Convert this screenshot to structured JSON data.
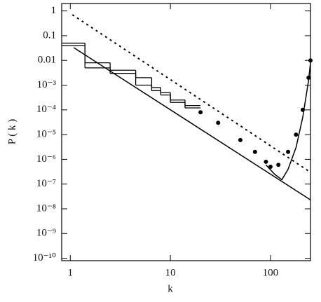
{
  "chart_data": {
    "type": "line",
    "x_label": "k",
    "y_label": "P ( k )",
    "log_x": true,
    "log_y": true,
    "color": "#000000",
    "xlim": [
      0.82,
      251
    ],
    "xticks": [
      1,
      10,
      100
    ],
    "ylim": [
      8e-11,
      2
    ],
    "yticks": [
      1,
      0.1,
      0.01,
      {
        "value": 0.001,
        "label": "10⁻³"
      },
      {
        "value": 0.0001,
        "label": "10⁻⁴"
      },
      {
        "value": 1e-05,
        "label": "10⁻⁵"
      },
      {
        "value": 1e-06,
        "label": "10⁻⁶"
      },
      {
        "value": 1e-07,
        "label": "10⁻⁷"
      },
      {
        "value": 1e-08,
        "label": "10⁻⁸"
      },
      {
        "value": 1e-09,
        "label": "10⁻⁹"
      },
      {
        "value": 1e-10,
        "label": "10⁻¹⁰"
      }
    ],
    "series": [
      {
        "style": "dotted",
        "x": [
          1.05,
          251
        ],
        "values": [
          0.7,
          3e-07
        ]
      },
      {
        "style": "solid",
        "x": [
          1.08,
          251
        ],
        "values": [
          0.033,
          2.3e-08
        ]
      },
      {
        "style": "step",
        "bins": [
          0.82,
          1.4,
          2.5,
          4.5,
          6.5,
          8,
          10,
          14,
          20
        ],
        "values": [
          0.05,
          0.005,
          0.003,
          0.001,
          0.0006,
          0.0004,
          0.0002,
          0.00012
        ]
      },
      {
        "style": "step",
        "bins": [
          0.82,
          1.4,
          2.5,
          4.5,
          6.5,
          8,
          10,
          14,
          20
        ],
        "values": [
          0.04,
          0.008,
          0.004,
          0.002,
          0.0008,
          0.0005,
          0.00025,
          0.00015
        ]
      },
      {
        "style": "points",
        "x": [
          20,
          30,
          50,
          70,
          90,
          100,
          120,
          150,
          180,
          210,
          240,
          251
        ],
        "values": [
          8e-05,
          3e-05,
          6e-06,
          2e-06,
          8e-07,
          5e-07,
          6e-07,
          2e-06,
          1e-05,
          0.0001,
          0.002,
          0.01
        ]
      },
      {
        "style": "solid",
        "x": [
          90,
          110,
          130,
          150,
          180,
          210,
          240,
          251
        ],
        "values": [
          6e-07,
          2.5e-07,
          1.5e-07,
          4e-07,
          3e-06,
          5e-05,
          0.0015,
          0.008
        ]
      }
    ]
  }
}
